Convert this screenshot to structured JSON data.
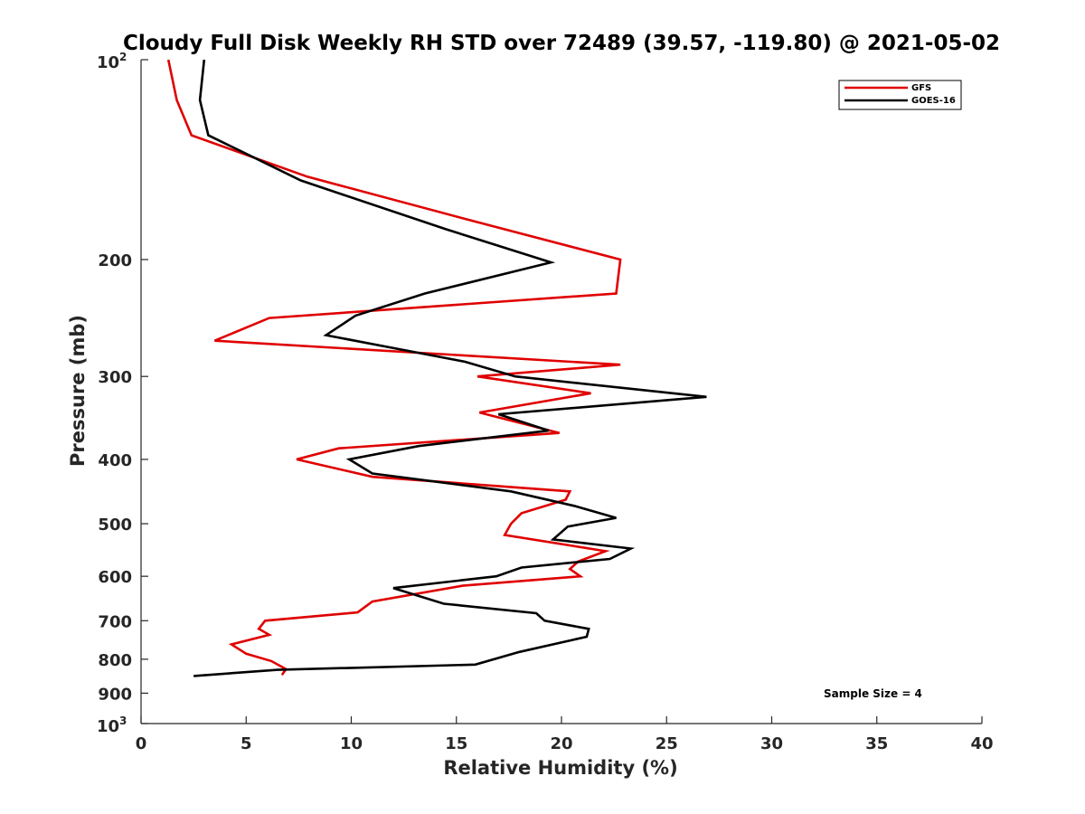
{
  "chart_data": {
    "type": "line",
    "title": "Cloudy Full Disk Weekly RH STD over 72489 (39.57, -119.80) @ 2021-05-02",
    "xlabel": "Relative Humidity (%)",
    "ylabel": "Pressure (mb)",
    "xlim": [
      0,
      40
    ],
    "ylim": [
      100,
      1000
    ],
    "y_scale": "log",
    "y_reversed": true,
    "grid": false,
    "legend_position": "top-right",
    "x_ticks": [
      "0",
      "5",
      "10",
      "15",
      "20",
      "25",
      "30",
      "35",
      "40"
    ],
    "y_ticks": [
      {
        "value": 100,
        "base": "10",
        "exp": "2"
      },
      {
        "value": 200,
        "label": "200"
      },
      {
        "value": 300,
        "label": "300"
      },
      {
        "value": 400,
        "label": "400"
      },
      {
        "value": 500,
        "label": "500"
      },
      {
        "value": 600,
        "label": "600"
      },
      {
        "value": 700,
        "label": "700"
      },
      {
        "value": 800,
        "label": "800"
      },
      {
        "value": 900,
        "label": "900"
      },
      {
        "value": 1000,
        "base": "10",
        "exp": "3"
      }
    ],
    "series": [
      {
        "name": "GFS",
        "color": "#e00000",
        "points": [
          [
            1.3,
            100
          ],
          [
            1.7,
            115
          ],
          [
            2.4,
            130
          ],
          [
            7.9,
            150
          ],
          [
            15.8,
            175
          ],
          [
            22.8,
            200
          ],
          [
            22.6,
            225
          ],
          [
            6.1,
            245
          ],
          [
            3.5,
            265
          ],
          [
            22.8,
            288
          ],
          [
            16.0,
            300
          ],
          [
            21.4,
            318
          ],
          [
            16.1,
            340
          ],
          [
            19.9,
            365
          ],
          [
            9.4,
            385
          ],
          [
            7.4,
            400
          ],
          [
            11.0,
            425
          ],
          [
            20.4,
            447
          ],
          [
            20.2,
            460
          ],
          [
            18.1,
            482
          ],
          [
            17.6,
            500
          ],
          [
            17.3,
            520
          ],
          [
            22.1,
            550
          ],
          [
            20.8,
            570
          ],
          [
            20.4,
            585
          ],
          [
            20.9,
            600
          ],
          [
            15.3,
            620
          ],
          [
            11.0,
            655
          ],
          [
            10.3,
            680
          ],
          [
            5.9,
            700
          ],
          [
            5.6,
            720
          ],
          [
            6.1,
            735
          ],
          [
            4.3,
            760
          ],
          [
            5.0,
            785
          ],
          [
            6.2,
            805
          ],
          [
            6.9,
            828
          ],
          [
            6.7,
            845
          ]
        ]
      },
      {
        "name": "GOES-16",
        "color": "#000000",
        "points": [
          [
            3.0,
            100
          ],
          [
            2.8,
            115
          ],
          [
            3.2,
            130
          ],
          [
            7.6,
            152
          ],
          [
            14.5,
            180
          ],
          [
            19.5,
            202
          ],
          [
            13.5,
            225
          ],
          [
            10.2,
            243
          ],
          [
            8.8,
            260
          ],
          [
            15.4,
            285
          ],
          [
            17.8,
            300
          ],
          [
            26.9,
            322
          ],
          [
            17.0,
            342
          ],
          [
            19.4,
            362
          ],
          [
            13.2,
            382
          ],
          [
            9.9,
            400
          ],
          [
            11.0,
            420
          ],
          [
            17.6,
            447
          ],
          [
            20.6,
            470
          ],
          [
            22.6,
            490
          ],
          [
            20.3,
            505
          ],
          [
            19.6,
            528
          ],
          [
            23.3,
            545
          ],
          [
            22.3,
            565
          ],
          [
            18.1,
            582
          ],
          [
            16.9,
            600
          ],
          [
            12.0,
            625
          ],
          [
            14.4,
            660
          ],
          [
            18.8,
            682
          ],
          [
            19.2,
            700
          ],
          [
            21.3,
            720
          ],
          [
            21.2,
            740
          ],
          [
            18.0,
            780
          ],
          [
            15.9,
            815
          ],
          [
            6.5,
            830
          ],
          [
            2.5,
            848
          ]
        ]
      }
    ],
    "annotations": [
      "Sample Size = 4"
    ]
  }
}
